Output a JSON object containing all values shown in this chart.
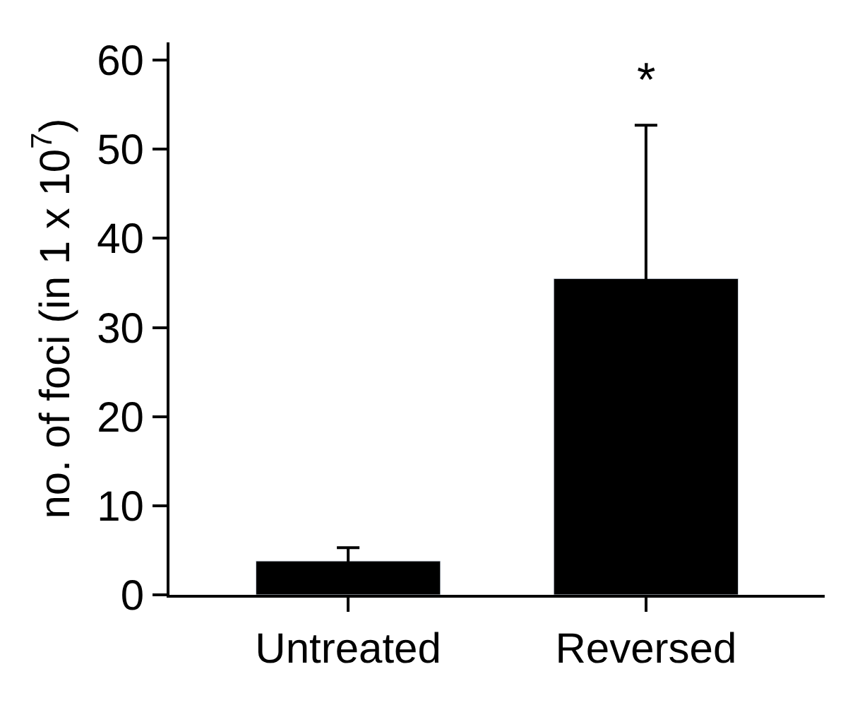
{
  "chart_data": {
    "type": "bar",
    "ylabel": "no. of foci (in 1 x 10$^{7}$)",
    "categories": [
      "Untreated",
      "Reversed"
    ],
    "values": [
      3.8,
      35.5
    ],
    "errors": [
      1.5,
      17.2
    ],
    "color": "#000000",
    "ylim": [
      0,
      62
    ],
    "yticks": [
      0,
      10,
      20,
      30,
      40,
      50,
      60
    ],
    "annotations": [
      "*"
    ]
  }
}
